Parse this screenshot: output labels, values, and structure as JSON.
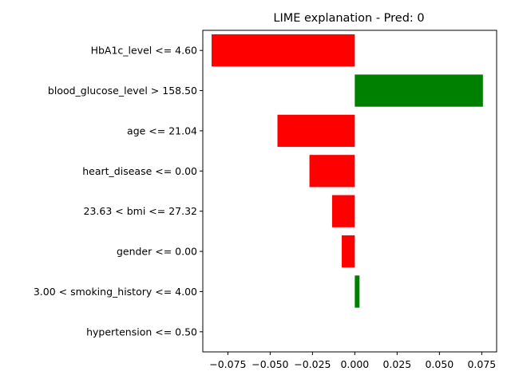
{
  "chart_data": {
    "type": "bar",
    "orientation": "horizontal",
    "title": "LIME explanation - Pred: 0",
    "xlabel": "",
    "ylabel": "",
    "xlim": [
      -0.0898,
      0.0838
    ],
    "xticks": [
      -0.075,
      -0.05,
      -0.025,
      0.0,
      0.025,
      0.05,
      0.075
    ],
    "xtick_labels": [
      "−0.075",
      "−0.050",
      "−0.025",
      "0.000",
      "0.025",
      "0.050",
      "0.075"
    ],
    "categories": [
      "HbA1c_level <= 4.60",
      "blood_glucose_level > 158.50",
      "age <= 21.04",
      "heart_disease <= 0.00",
      "23.63 < bmi <= 27.32",
      "gender <= 0.00",
      "3.00 < smoking_history <= 4.00",
      "hypertension <= 0.50"
    ],
    "values": [
      -0.0846,
      0.0757,
      -0.0457,
      -0.0268,
      -0.0134,
      -0.0077,
      0.0028,
      0.0
    ],
    "colors": {
      "positive": "#008000",
      "negative": "#ff0000"
    }
  }
}
